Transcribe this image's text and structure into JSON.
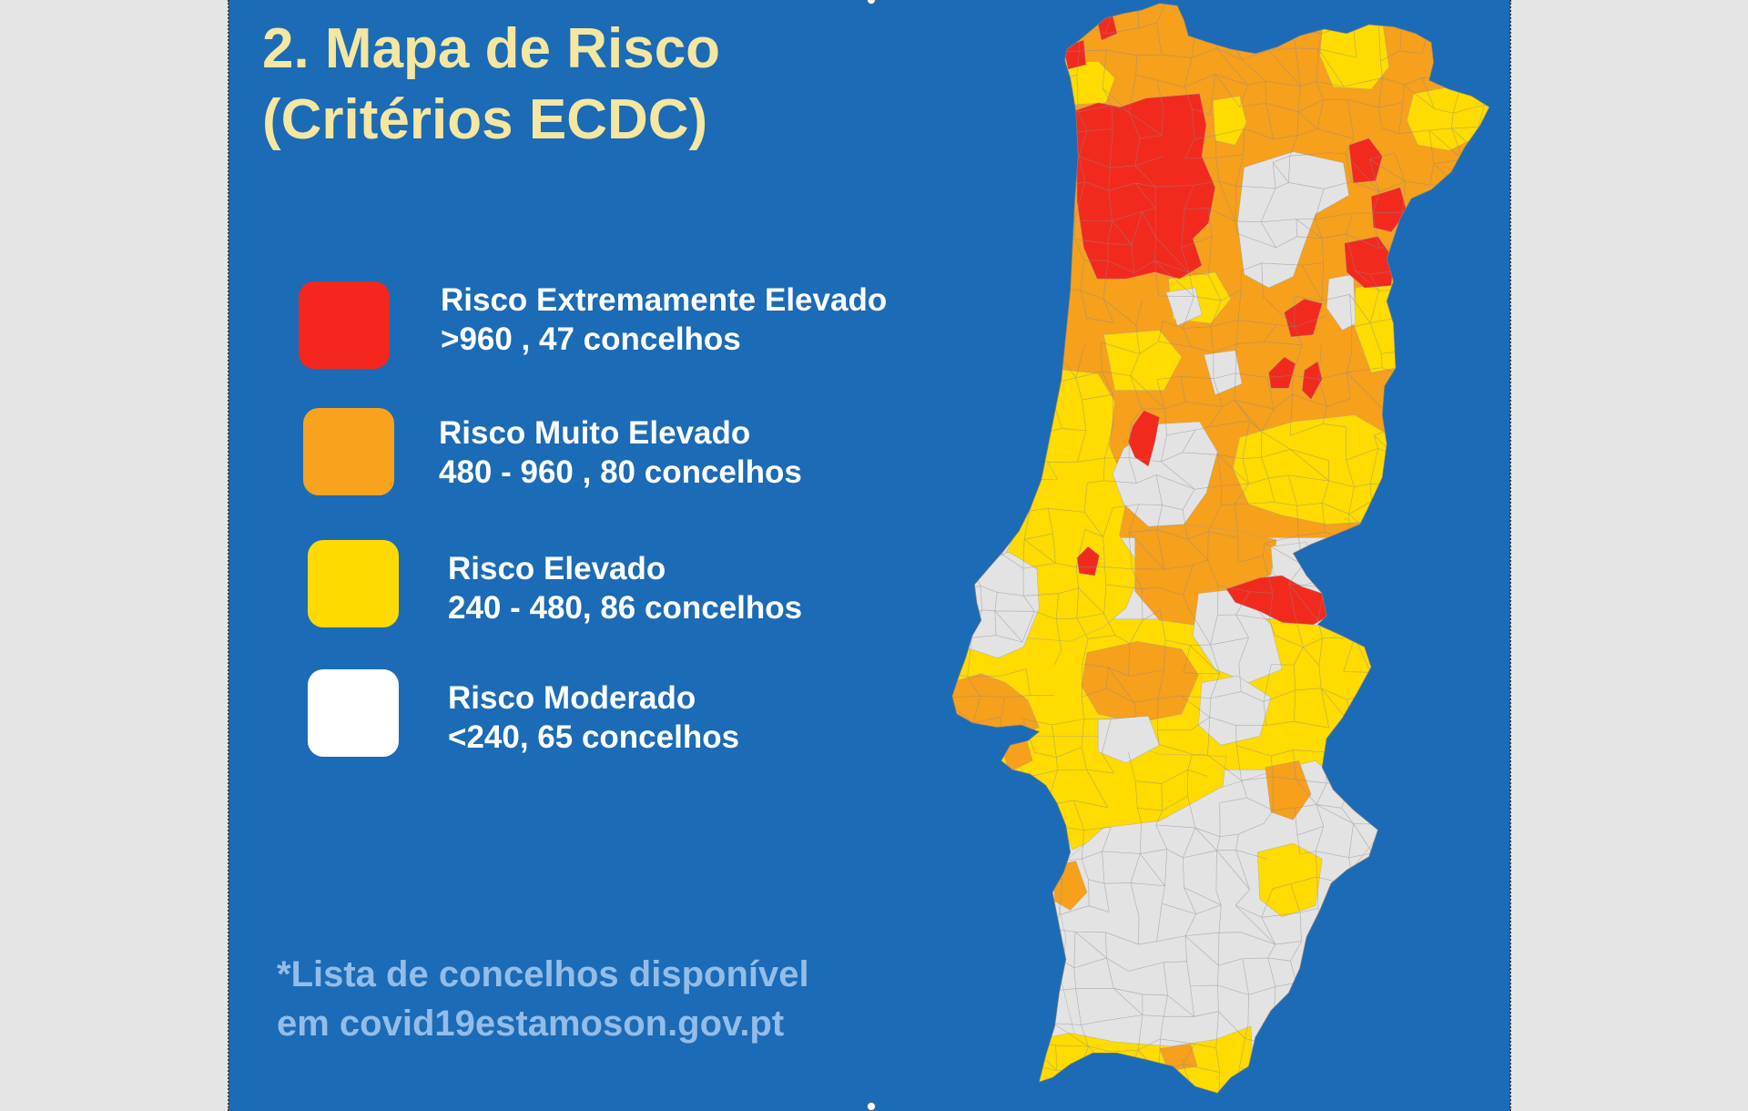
{
  "slide": {
    "background_color": "#1b6bb6",
    "title": {
      "line1": "2. Mapa de Risco",
      "line2": "(Critérios ECDC)",
      "color": "#f5e6a0"
    }
  },
  "legend": [
    {
      "label": "Risco Extremamente Elevado",
      "detail": ">960 , 47 concelhos",
      "color": "#f5261d",
      "map_color": "#f22a1e"
    },
    {
      "label": "Risco Muito Elevado",
      "detail": "480 - 960 , 80 concelhos",
      "color": "#f9a21d",
      "map_color": "#f6a01c"
    },
    {
      "label": "Risco Elevado",
      "detail": "240 - 480, 86 concelhos",
      "color": "#ffda00",
      "map_color": "#ffdb00"
    },
    {
      "label": "Risco Moderado",
      "detail": "<240, 65 concelhos",
      "color": "#ffffff",
      "map_color": "#e3e3e3"
    }
  ],
  "footnote": {
    "line1": "*Lista de concelhos disponível",
    "line2": "em covid19estamoson.gov.pt",
    "color": "#93bde8"
  }
}
